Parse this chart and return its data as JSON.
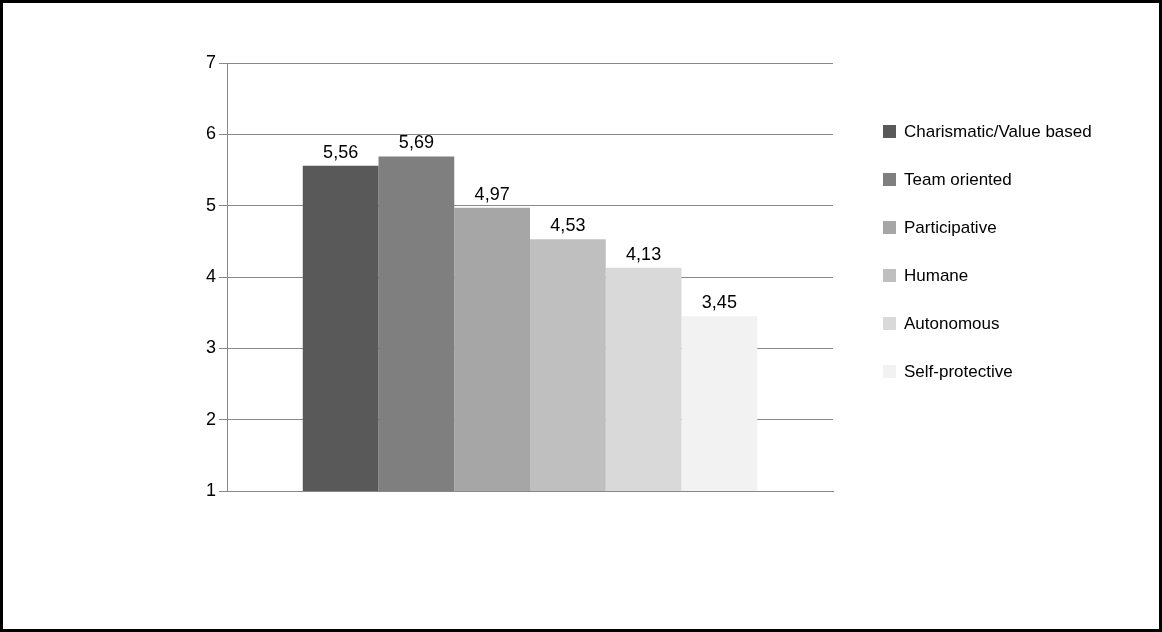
{
  "chart_data": {
    "type": "bar",
    "categories": [
      null
    ],
    "series": [
      {
        "name": "Charismatic/Value based",
        "color": "#595959",
        "values": [
          5.56
        ],
        "value_labels": [
          "5,56"
        ]
      },
      {
        "name": "Team oriented",
        "color": "#7f7f7f",
        "values": [
          5.69
        ],
        "value_labels": [
          "5,69"
        ]
      },
      {
        "name": "Participative",
        "color": "#a6a6a6",
        "values": [
          4.97
        ],
        "value_labels": [
          "4,97"
        ]
      },
      {
        "name": "Humane",
        "color": "#bfbfbf",
        "values": [
          4.53
        ],
        "value_labels": [
          "4,53"
        ]
      },
      {
        "name": "Autonomous",
        "color": "#d9d9d9",
        "values": [
          4.13
        ],
        "value_labels": [
          "4,13"
        ]
      },
      {
        "name": "Self-protective",
        "color": "#f2f2f2",
        "values": [
          3.45
        ],
        "value_labels": [
          "3,45"
        ]
      }
    ],
    "ylim": [
      1,
      7
    ],
    "yticks": [
      1,
      2,
      3,
      4,
      5,
      6,
      7
    ],
    "grid": "y",
    "legend": "right"
  }
}
